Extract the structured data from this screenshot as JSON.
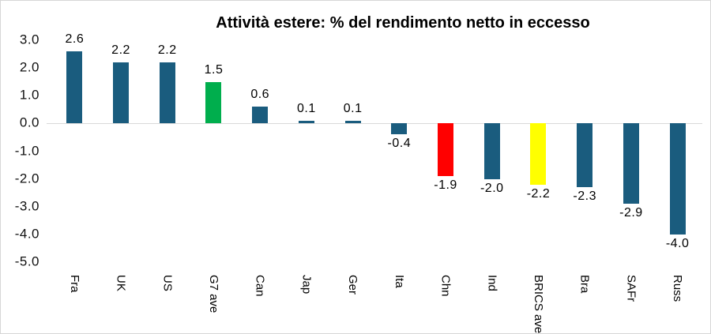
{
  "chart_data": {
    "type": "bar",
    "title": "Attività estere: % del rendimento netto in eccesso",
    "categories": [
      "Fra",
      "UK",
      "US",
      "G7 ave",
      "Can",
      "Jap",
      "Ger",
      "Ita",
      "Chn",
      "Ind",
      "BRICS ave",
      "Bra",
      "SAFr",
      "Russ"
    ],
    "values": [
      2.6,
      2.2,
      2.2,
      1.5,
      0.6,
      0.1,
      0.1,
      -0.4,
      -1.9,
      -2.0,
      -2.2,
      -2.3,
      -2.9,
      -4.0
    ],
    "data_labels": [
      "2.6",
      "2.2",
      "2.2",
      "1.5",
      "0.6",
      "0.1",
      "0.1",
      "-0.4",
      "-1.9",
      "-2.0",
      "-2.2",
      "-2.3",
      "-2.9",
      "-4.0"
    ],
    "bar_colors": [
      "#1a5c7e",
      "#1a5c7e",
      "#1a5c7e",
      "#00ae4d",
      "#1a5c7e",
      "#1a5c7e",
      "#1a5c7e",
      "#1a5c7e",
      "#ff0000",
      "#1a5c7e",
      "#ffff00",
      "#1a5c7e",
      "#1a5c7e",
      "#1a5c7e"
    ],
    "colors": {
      "default_bar": "#1a5c7e",
      "g7_average_bar": "#00ae4d",
      "china_bar": "#ff0000",
      "brics_average_bar": "#ffff00",
      "zero_gridline": "#d9d9d9",
      "text": "#000000"
    },
    "xlabel": "",
    "ylabel": "",
    "y_ticks": [
      "3.0",
      "2.0",
      "1.0",
      "0.0",
      "-1.0",
      "-2.0",
      "-3.0",
      "-4.0",
      "-5.0"
    ],
    "ylim": [
      -5.0,
      3.0
    ],
    "grid": "zero-line-only",
    "legend": "none",
    "category_label_orientation": "vertical"
  }
}
